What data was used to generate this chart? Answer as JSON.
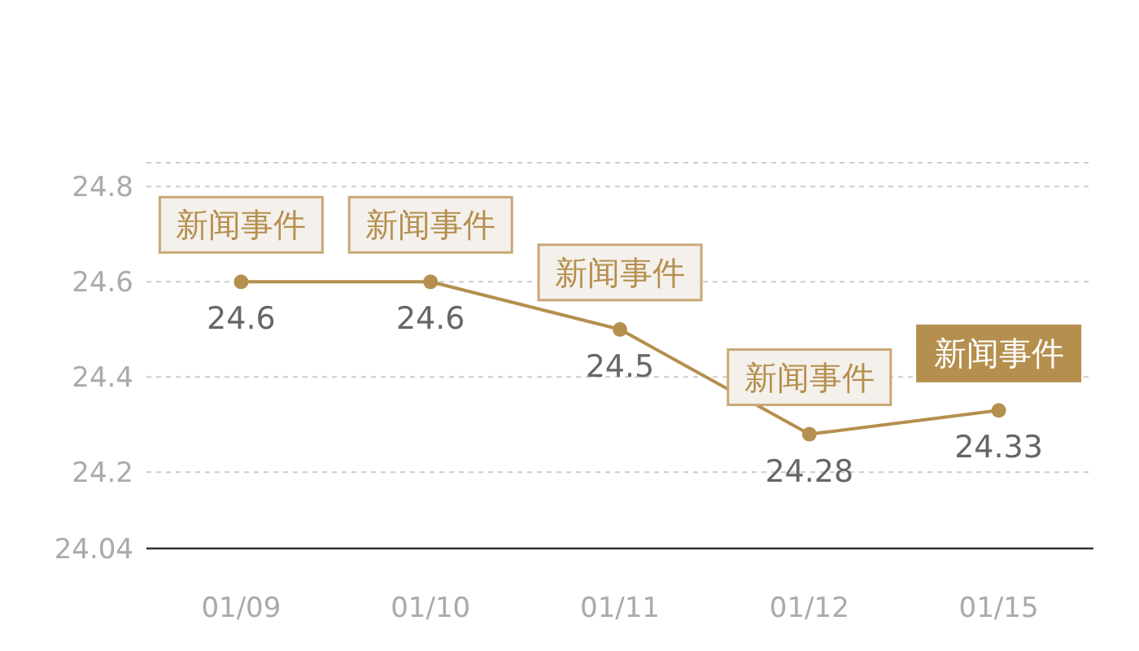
{
  "chart_data": {
    "type": "line",
    "categories": [
      "01/09",
      "01/10",
      "01/11",
      "01/12",
      "01/15"
    ],
    "series": [
      {
        "color": "#b58f4e",
        "values": [
          24.6,
          24.6,
          24.5,
          24.28,
          24.33
        ]
      }
    ],
    "ylim": [
      24.04,
      24.85
    ],
    "yticks": [
      24.04,
      24.2,
      24.4,
      24.6,
      24.8,
      {
        "value": 24.85,
        "label": null
      }
    ],
    "grid": "y",
    "marker": "circle",
    "line_style": "solid",
    "data_labels": true,
    "annotations": [
      {
        "text": "新闻事件",
        "x": "01/09",
        "y": 24.6
      },
      {
        "text": "新闻事件",
        "x": "01/10",
        "y": 24.6
      },
      {
        "text": "新闻事件",
        "x": "01/11",
        "y": 24.5
      },
      {
        "text": "新闻事件",
        "x": "01/12",
        "y": 24.28
      },
      {
        "text": "新闻事件",
        "x": "01/15",
        "y": 24.33
      }
    ]
  }
}
